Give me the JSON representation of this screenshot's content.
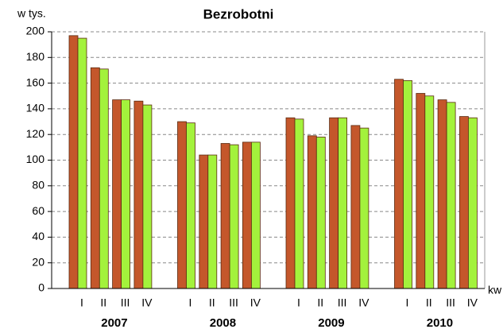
{
  "chart_data": {
    "type": "bar",
    "title": "Bezrobotni",
    "y_label": "w tys.",
    "x_label": "kw",
    "categories": [
      "I",
      "II",
      "III",
      "IV",
      "I",
      "II",
      "III",
      "IV",
      "I",
      "II",
      "III",
      "IV",
      "I",
      "II",
      "III",
      "IV"
    ],
    "groups": [
      "2007",
      "2008",
      "2009",
      "2010"
    ],
    "series": [
      {
        "color": "#c4572b",
        "values": [
          197,
          172,
          147,
          146,
          130,
          104,
          113,
          114,
          133,
          119,
          133,
          127,
          163,
          152,
          147,
          134
        ]
      },
      {
        "color": "#a3f23c",
        "values": [
          195,
          171,
          147,
          143,
          129,
          104,
          112,
          114,
          132,
          118,
          133,
          125,
          162,
          150,
          145,
          133
        ]
      }
    ],
    "ylim": [
      0,
      200
    ],
    "yticks": [
      0,
      20,
      40,
      60,
      80,
      100,
      120,
      140,
      160,
      180,
      200
    ],
    "grid": true
  }
}
